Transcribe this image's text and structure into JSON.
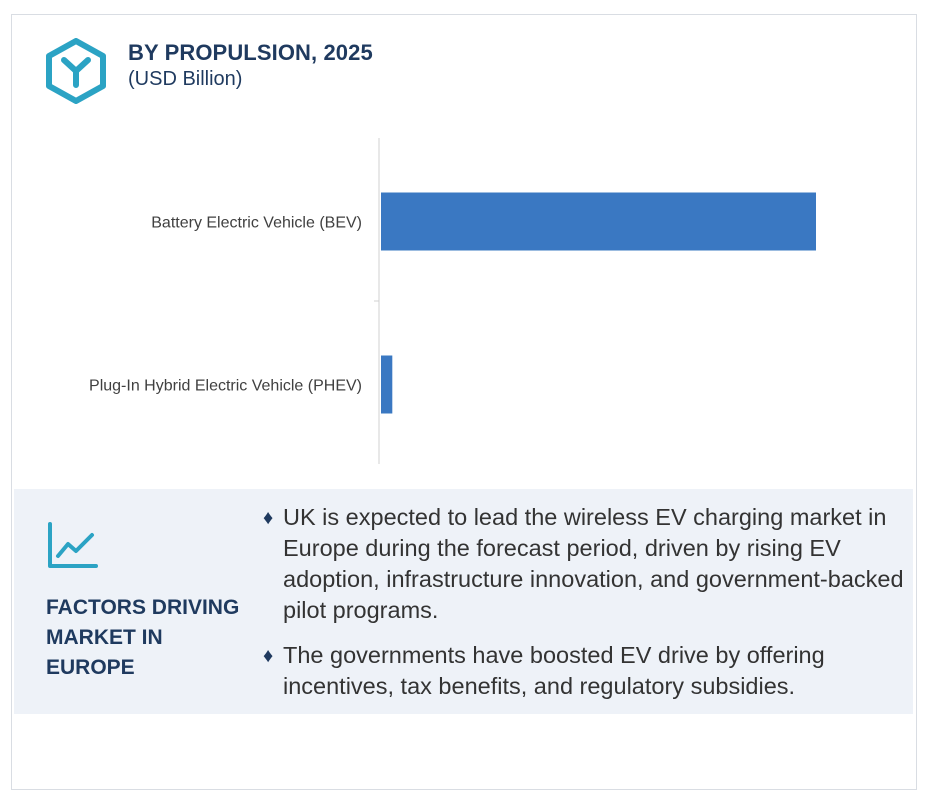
{
  "header": {
    "title": "BY PROPULSION, 2025",
    "subtitle": "(USD Billion)",
    "icon": "hexagon-y-icon"
  },
  "chart_data": {
    "type": "bar",
    "orientation": "horizontal",
    "title": "BY PROPULSION, 2025",
    "subtitle": "(USD Billion)",
    "categories": [
      "Battery Electric Vehicle (BEV)",
      "Plug-In Hybrid  Electric Vehicle (PHEV)"
    ],
    "values": [
      100,
      2.6
    ],
    "value_scale": "relative (no axis ticks shown)",
    "xlim": [
      0,
      100
    ],
    "bar_color": "#3a78c2",
    "grid": false,
    "legend": "none"
  },
  "factors": {
    "icon": "trend-chart-icon",
    "title": "FACTORS DRIVING MARKET IN EUROPE",
    "bullets": [
      "UK is expected to lead the wireless EV charging market in Europe during the forecast period, driven by rising EV adoption, infrastructure innovation, and government-backed pilot programs.",
      "The governments have boosted EV drive by offering incentives, tax benefits, and regulatory subsidies."
    ]
  },
  "colors": {
    "accent": "#2ba3c4",
    "heading": "#1f3a5f",
    "bar": "#3a78c2",
    "panel": "#eef2f8"
  }
}
